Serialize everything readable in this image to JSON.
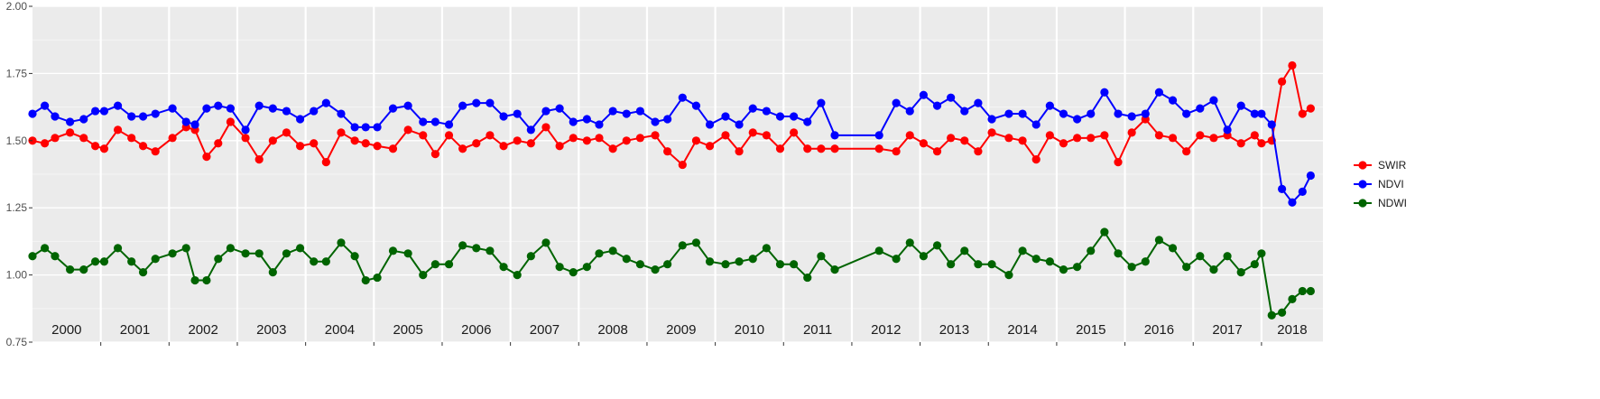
{
  "chart_data": {
    "type": "line",
    "title": "",
    "xlabel": "",
    "ylabel": "",
    "ylim": [
      0.75,
      2.0
    ],
    "xlim": [
      2000.0,
      2018.9
    ],
    "y_ticks": [
      "0.75",
      "1.00",
      "1.25",
      "1.50",
      "1.75",
      "2.00"
    ],
    "x_panels": [
      "2000",
      "2001",
      "2002",
      "2003",
      "2004",
      "2005",
      "2006",
      "2007",
      "2008",
      "2009",
      "2010",
      "2011",
      "2012",
      "2013",
      "2014",
      "2015",
      "2016",
      "2017",
      "2018"
    ],
    "grid": true,
    "legend_position": "right",
    "x": [
      2000.0,
      2000.18,
      2000.33,
      2000.55,
      2000.75,
      2000.92,
      2001.05,
      2001.25,
      2001.45,
      2001.62,
      2001.8,
      2002.05,
      2002.25,
      2002.38,
      2002.55,
      2002.72,
      2002.9,
      2003.12,
      2003.32,
      2003.52,
      2003.72,
      2003.92,
      2004.12,
      2004.3,
      2004.52,
      2004.72,
      2004.88,
      2005.05,
      2005.28,
      2005.5,
      2005.72,
      2005.9,
      2006.1,
      2006.3,
      2006.5,
      2006.7,
      2006.9,
      2007.1,
      2007.3,
      2007.52,
      2007.72,
      2007.92,
      2008.12,
      2008.3,
      2008.5,
      2008.7,
      2008.9,
      2009.12,
      2009.3,
      2009.52,
      2009.72,
      2009.92,
      2010.15,
      2010.35,
      2010.55,
      2010.75,
      2010.95,
      2011.15,
      2011.35,
      2011.55,
      2011.75,
      2012.4,
      2012.65,
      2012.85,
      2013.05,
      2013.25,
      2013.45,
      2013.65,
      2013.85,
      2014.05,
      2014.3,
      2014.5,
      2014.7,
      2014.9,
      2015.1,
      2015.3,
      2015.5,
      2015.7,
      2015.9,
      2016.1,
      2016.3,
      2016.5,
      2016.7,
      2016.9,
      2017.1,
      2017.3,
      2017.5,
      2017.7,
      2017.9,
      2018.0,
      2018.15,
      2018.3,
      2018.45,
      2018.6,
      2018.72
    ],
    "series": [
      {
        "name": "SWIR",
        "color": "#ff0000",
        "values": [
          1.5,
          1.49,
          1.51,
          1.53,
          1.51,
          1.48,
          1.47,
          1.54,
          1.51,
          1.48,
          1.46,
          1.51,
          1.55,
          1.54,
          1.44,
          1.49,
          1.57,
          1.51,
          1.43,
          1.5,
          1.53,
          1.48,
          1.49,
          1.42,
          1.53,
          1.5,
          1.49,
          1.48,
          1.47,
          1.54,
          1.52,
          1.45,
          1.52,
          1.47,
          1.49,
          1.52,
          1.48,
          1.5,
          1.49,
          1.55,
          1.48,
          1.51,
          1.5,
          1.51,
          1.47,
          1.5,
          1.51,
          1.52,
          1.46,
          1.41,
          1.5,
          1.48,
          1.52,
          1.46,
          1.53,
          1.52,
          1.47,
          1.53,
          1.47,
          1.47,
          1.47,
          1.47,
          1.46,
          1.52,
          1.49,
          1.46,
          1.51,
          1.5,
          1.46,
          1.53,
          1.51,
          1.5,
          1.43,
          1.52,
          1.49,
          1.51,
          1.51,
          1.52,
          1.42,
          1.53,
          1.58,
          1.52,
          1.51,
          1.46,
          1.52,
          1.51,
          1.52,
          1.49,
          1.52,
          1.49,
          1.5,
          1.72,
          1.78,
          1.6,
          1.62
        ]
      },
      {
        "name": "NDVI",
        "color": "#0000ff",
        "values": [
          1.6,
          1.63,
          1.59,
          1.57,
          1.58,
          1.61,
          1.61,
          1.63,
          1.59,
          1.59,
          1.6,
          1.62,
          1.57,
          1.56,
          1.62,
          1.63,
          1.62,
          1.54,
          1.63,
          1.62,
          1.61,
          1.58,
          1.61,
          1.64,
          1.6,
          1.55,
          1.55,
          1.55,
          1.62,
          1.63,
          1.57,
          1.57,
          1.56,
          1.63,
          1.64,
          1.64,
          1.59,
          1.6,
          1.54,
          1.61,
          1.62,
          1.57,
          1.58,
          1.56,
          1.61,
          1.6,
          1.61,
          1.57,
          1.58,
          1.66,
          1.63,
          1.56,
          1.59,
          1.56,
          1.62,
          1.61,
          1.59,
          1.59,
          1.57,
          1.64,
          1.52,
          1.52,
          1.64,
          1.61,
          1.67,
          1.63,
          1.66,
          1.61,
          1.64,
          1.58,
          1.6,
          1.6,
          1.56,
          1.63,
          1.6,
          1.58,
          1.6,
          1.68,
          1.6,
          1.59,
          1.6,
          1.68,
          1.65,
          1.6,
          1.62,
          1.65,
          1.54,
          1.63,
          1.6,
          1.6,
          1.56,
          1.32,
          1.27,
          1.31,
          1.37
        ]
      },
      {
        "name": "NDWI",
        "color": "#006400",
        "values": [
          1.07,
          1.1,
          1.07,
          1.02,
          1.02,
          1.05,
          1.05,
          1.1,
          1.05,
          1.01,
          1.06,
          1.08,
          1.1,
          0.98,
          0.98,
          1.06,
          1.1,
          1.08,
          1.08,
          1.01,
          1.08,
          1.1,
          1.05,
          1.05,
          1.12,
          1.07,
          0.98,
          0.99,
          1.09,
          1.08,
          1.0,
          1.04,
          1.04,
          1.11,
          1.1,
          1.09,
          1.03,
          1.0,
          1.07,
          1.12,
          1.03,
          1.01,
          1.03,
          1.08,
          1.09,
          1.06,
          1.04,
          1.02,
          1.04,
          1.11,
          1.12,
          1.05,
          1.04,
          1.05,
          1.06,
          1.1,
          1.04,
          1.04,
          0.99,
          1.07,
          1.02,
          1.09,
          1.06,
          1.12,
          1.07,
          1.11,
          1.04,
          1.09,
          1.04,
          1.04,
          1.0,
          1.09,
          1.06,
          1.05,
          1.02,
          1.03,
          1.09,
          1.16,
          1.08,
          1.03,
          1.05,
          1.13,
          1.1,
          1.03,
          1.07,
          1.02,
          1.07,
          1.01,
          1.04,
          1.08,
          0.85,
          0.86,
          0.91,
          0.94,
          0.94
        ]
      }
    ]
  }
}
